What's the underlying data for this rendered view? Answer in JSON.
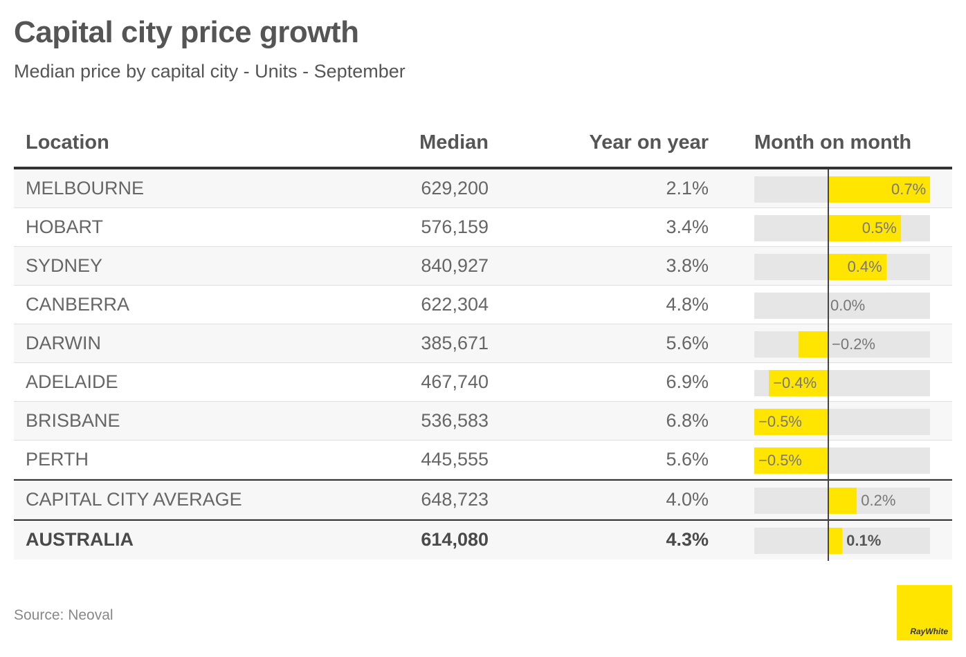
{
  "title": "Capital city price growth",
  "subtitle": "Median price by capital city - Units - September",
  "source": "Source: Neoval",
  "logo_text": "RayWhite",
  "colors": {
    "bar": "#ffe500",
    "track": "#e6e6e6",
    "text": "#555555"
  },
  "chart_data": {
    "type": "table",
    "columns": [
      "Location",
      "Median",
      "Year on year",
      "Month on month"
    ],
    "mom_range": [
      -0.5,
      0.7
    ],
    "rows": [
      {
        "location": "MELBOURNE",
        "median": "629,200",
        "yoy": "2.1%",
        "mom": 0.7,
        "mom_label": "0.7%"
      },
      {
        "location": "HOBART",
        "median": "576,159",
        "yoy": "3.4%",
        "mom": 0.5,
        "mom_label": "0.5%"
      },
      {
        "location": "SYDNEY",
        "median": "840,927",
        "yoy": "3.8%",
        "mom": 0.4,
        "mom_label": "0.4%"
      },
      {
        "location": "CANBERRA",
        "median": "622,304",
        "yoy": "4.8%",
        "mom": 0.0,
        "mom_label": "0.0%"
      },
      {
        "location": "DARWIN",
        "median": "385,671",
        "yoy": "5.6%",
        "mom": -0.2,
        "mom_label": "−0.2%"
      },
      {
        "location": "ADELAIDE",
        "median": "467,740",
        "yoy": "6.9%",
        "mom": -0.4,
        "mom_label": "−0.4%"
      },
      {
        "location": "BRISBANE",
        "median": "536,583",
        "yoy": "6.8%",
        "mom": -0.5,
        "mom_label": "−0.5%"
      },
      {
        "location": "PERTH",
        "median": "445,555",
        "yoy": "5.6%",
        "mom": -0.5,
        "mom_label": "−0.5%"
      },
      {
        "location": "CAPITAL CITY AVERAGE",
        "median": "648,723",
        "yoy": "4.0%",
        "mom": 0.2,
        "mom_label": "0.2%"
      },
      {
        "location": "AUSTRALIA",
        "median": "614,080",
        "yoy": "4.3%",
        "mom": 0.1,
        "mom_label": "0.1%"
      }
    ]
  }
}
